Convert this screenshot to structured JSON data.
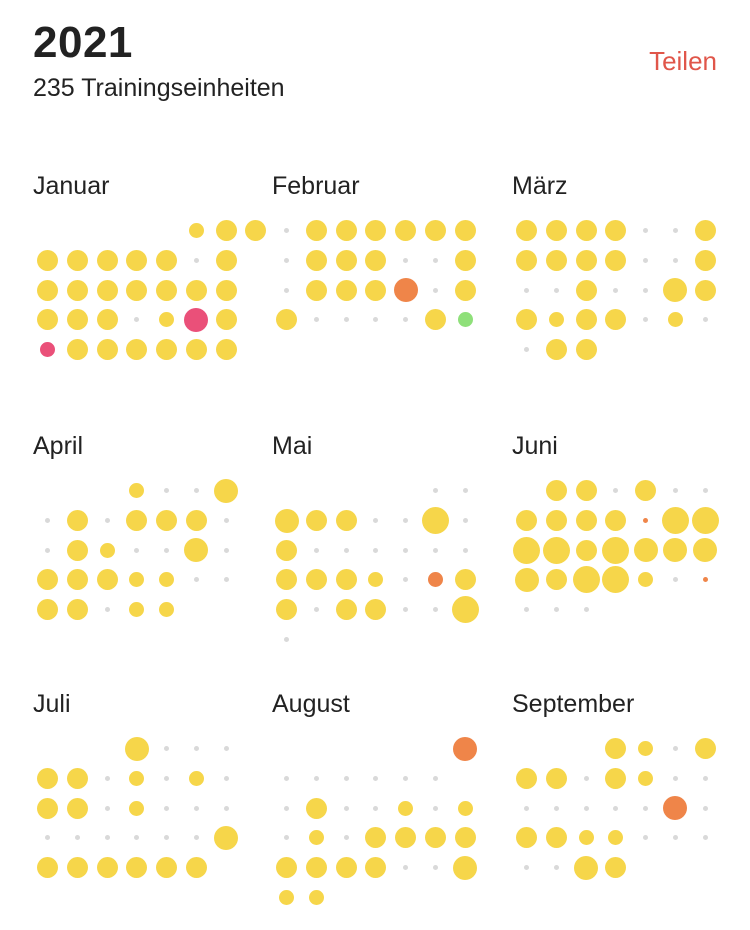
{
  "header": {
    "year": "2021",
    "subtitle": "235 Trainingseinheiten",
    "share_label": "Teilen"
  },
  "legend_colors": {
    "empty": "#d9d9d9",
    "yellow": "#f6d64a",
    "orange": "#ef8549",
    "pink": "#ea5079",
    "green": "#8fe07a"
  },
  "size_scale": {
    "0": 5,
    "1": 15,
    "2": 21,
    "3": 24,
    "4": 27
  },
  "months": [
    {
      "name": "Januar",
      "rows": [
        "-----y1y2y2",
        "y2y2y2y2y2.y2",
        "y2y2y2y2y2y2y2",
        "y2y2y2.y1p3y2",
        "p1y2y2y2y2y2y2"
      ]
    },
    {
      "name": "Februar",
      "rows": [
        ".y2y2y2y2y2y2",
        ".y2y2y2..y2",
        ".y2y2y2o3.y2",
        "y2....y2g1",
        "-------"
      ]
    },
    {
      "name": "März",
      "rows": [
        "y2y2y2y2..y2",
        "y2y2y2y2..y2",
        "..y2..y3y2",
        "y2y1y2y2.y1.",
        ".y2y2----"
      ]
    },
    {
      "name": "April",
      "rows": [
        "---y1..y3",
        ".y2.y2y2y2.",
        ".y2y1..y3.",
        "y2y2y2y1y1..",
        "y2y2.y1y1--"
      ]
    },
    {
      "name": "Mai",
      "rows": [
        "-----..",
        "y3y2y2..y4.",
        "y2......",
        "y2y2y2y1.o1y2",
        "y2.y2y2..y4",
        ".------"
      ]
    },
    {
      "name": "Juni",
      "rows": [
        "-y2y2.y2..",
        "y2y2y2y2o0y4y4",
        "y4y4y2y4y3y3y3",
        "y3y2y4y4y1.o0",
        "...----"
      ]
    },
    {
      "name": "Juli",
      "rows": [
        "---y3...",
        "y2y2.y1.y1.",
        "y2y2.y1...",
        "......y3",
        "y2y2y2y2y2y2-"
      ]
    },
    {
      "name": "August",
      "rows": [
        "------o3",
        "......",
        ".y2..y1.y1",
        ".y1.y2y2y2y2",
        "y2y2y2y2..y3",
        "y1y1-----"
      ]
    },
    {
      "name": "September",
      "rows": [
        "---y2y1.y2",
        "y2y2.y2y1..",
        ".....o3.",
        "y2y2y1y1...",
        "..y3y2---"
      ]
    }
  ]
}
